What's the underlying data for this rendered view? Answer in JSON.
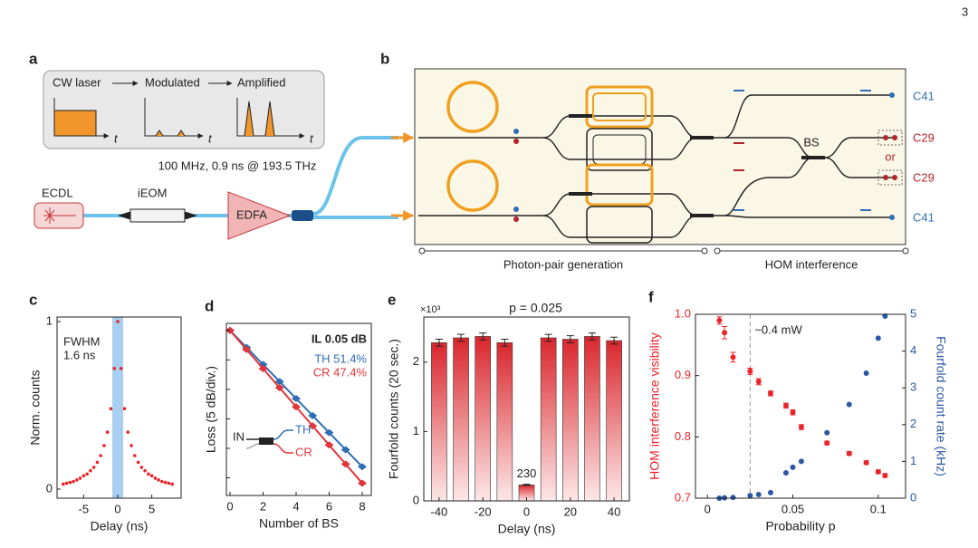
{
  "page_number": "3",
  "panel_a": {
    "label": "a",
    "stages": [
      "CW laser",
      "Modulated",
      "Amplified"
    ],
    "time_axis": "t",
    "pulse_caption": "100 MHz, 0.9 ns @ 193.5 THz",
    "components": [
      "ECDL",
      "iEOM",
      "EDFA"
    ]
  },
  "panel_b": {
    "label": "b",
    "beam_splitter": "BS",
    "outputs": [
      "C41",
      "C29",
      "C29",
      "C41"
    ],
    "or": "or",
    "sections": [
      "Photon-pair generation",
      "HOM interference"
    ]
  },
  "chart_data": [
    {
      "label": "c",
      "type": "scatter",
      "color": "#e8242a",
      "marker_size": 1.8,
      "x": [
        -8,
        -7.5,
        -7,
        -6.5,
        -6,
        -5.5,
        -5,
        -4.5,
        -4,
        -3.5,
        -3,
        -2.5,
        -2,
        -1.5,
        -1,
        -0.5,
        0,
        0.5,
        1,
        1.5,
        2,
        2.5,
        3,
        3.5,
        4,
        4.5,
        5,
        5.5,
        6,
        6.5,
        7,
        7.5,
        8
      ],
      "values": [
        0.03,
        0.035,
        0.04,
        0.045,
        0.055,
        0.065,
        0.08,
        0.09,
        0.11,
        0.13,
        0.16,
        0.2,
        0.26,
        0.34,
        0.48,
        0.72,
        1.0,
        0.72,
        0.48,
        0.34,
        0.26,
        0.2,
        0.16,
        0.13,
        0.11,
        0.09,
        0.08,
        0.065,
        0.055,
        0.045,
        0.04,
        0.035,
        0.03
      ],
      "band": [
        -0.8,
        0.8
      ],
      "band_color": "#a8cff0",
      "annotation": [
        "FWHM",
        "1.6 ns"
      ],
      "xlim": [
        -8.9,
        9.3
      ],
      "ylim": [
        -0.054,
        1.027
      ],
      "xticks": [
        -5,
        0,
        5
      ],
      "yticks": [
        0,
        1
      ],
      "xlabel": "Delay (ns)",
      "ylabel": "Norm. counts"
    },
    {
      "label": "d",
      "type": "line",
      "x": [
        0,
        1,
        2,
        3,
        4,
        5,
        6,
        7,
        8
      ],
      "series": [
        {
          "name": "TH 51.4%",
          "color": "#2f6db5",
          "values": [
            0,
            -2.89,
            -5.78,
            -8.67,
            -11.56,
            -14.45,
            -17.34,
            -20.23,
            -23.12
          ]
        },
        {
          "name": "CR 47.4%",
          "color": "#e0353b",
          "values": [
            0,
            -3.24,
            -6.48,
            -9.72,
            -12.96,
            -16.2,
            -19.44,
            -22.68,
            -25.92
          ]
        }
      ],
      "annotation": "IL 0.05 dB",
      "inset_labels": [
        "IN",
        "TH",
        "CR"
      ],
      "xlim": [
        -0.22,
        8.55
      ],
      "ylim": [
        -28,
        1.2
      ],
      "xticks": [
        0,
        2,
        4,
        6,
        8
      ],
      "yticks": [
        0,
        -5,
        -10,
        -15,
        -20,
        -25
      ],
      "ytick_labels": false,
      "xlabel": "Number of BS",
      "ylabel": "Loss (5 dB/div.)"
    },
    {
      "label": "e",
      "type": "bar",
      "color": "#d9262c",
      "title": "p = 0.025",
      "multiplier": "×10³",
      "x": [
        -40,
        -30,
        -20,
        -10,
        0,
        10,
        20,
        30,
        40
      ],
      "values": [
        2.28,
        2.35,
        2.37,
        2.28,
        0.23,
        2.35,
        2.33,
        2.37,
        2.31
      ],
      "errors": [
        0.05,
        0.05,
        0.05,
        0.05,
        0.01,
        0.05,
        0.05,
        0.05,
        0.05
      ],
      "value_labels": [
        null,
        null,
        null,
        null,
        "230",
        null,
        null,
        null,
        null
      ],
      "xlim": [
        -47,
        47
      ],
      "ylim": [
        0,
        2.65
      ],
      "xticks": [
        -40,
        -20,
        0,
        20,
        40
      ],
      "yticks": [
        0,
        1,
        2
      ],
      "xlabel": "Delay (ns)",
      "ylabel": "Fourfold counts (20 sec.)"
    },
    {
      "label": "f",
      "type": "scatter",
      "x": [
        0.007,
        0.01,
        0.015,
        0.025,
        0.03,
        0.037,
        0.046,
        0.05,
        0.055,
        0.07,
        0.083,
        0.093,
        0.1,
        0.104
      ],
      "series": [
        {
          "name": "HOM interference visibility",
          "color": "#e8242a",
          "values": [
            0.99,
            0.97,
            0.93,
            0.907,
            0.89,
            0.871,
            0.851,
            0.84,
            0.816,
            0.79,
            0.773,
            0.758,
            0.743,
            0.737
          ],
          "errors": [
            0.006,
            0.01,
            0.008,
            0.005,
            0.005,
            0.004,
            0.004,
            0.004,
            0.004,
            0.003,
            0.003,
            0.003,
            0.003,
            0.003
          ]
        },
        {
          "name": "Fourfold count rate (kHz)",
          "color": "#2b57a6",
          "axis": "y2",
          "values": [
            0.0,
            0.01,
            0.02,
            0.07,
            0.1,
            0.15,
            0.69,
            0.84,
            1.0,
            1.78,
            2.55,
            3.4,
            4.35,
            4.95
          ]
        }
      ],
      "threshold": {
        "x": 0.025,
        "label": "~0.4 mW"
      },
      "xlim": [
        -0.007,
        0.116
      ],
      "ylim": [
        0.7,
        1.0
      ],
      "y2lim": [
        0,
        5
      ],
      "xticks": [
        0,
        0.05,
        0.1
      ],
      "yticks": [
        0.7,
        0.8,
        0.9,
        {
          "value": 1,
          "label": "1.0"
        }
      ],
      "y2ticks": [
        0,
        1,
        2,
        3,
        4,
        5
      ],
      "xlabel": "Probability p"
    }
  ]
}
